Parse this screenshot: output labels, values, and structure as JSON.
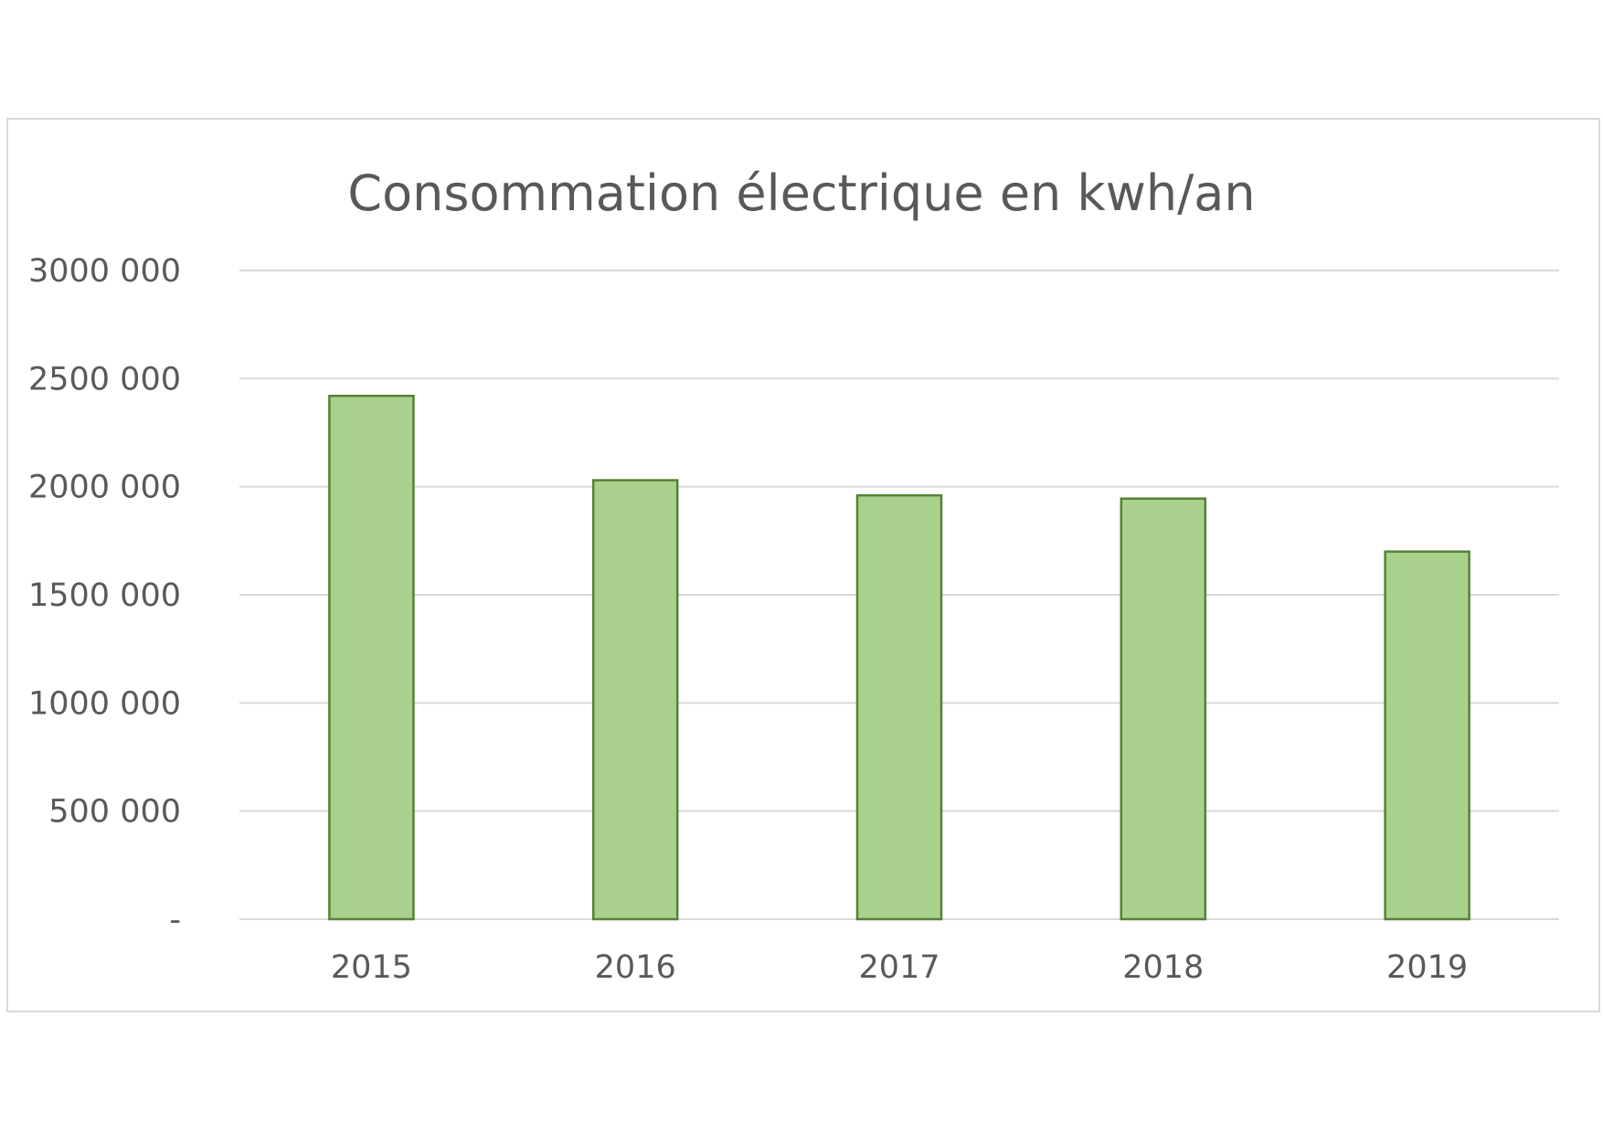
{
  "chart_data": {
    "type": "bar",
    "title": "Consommation électrique en kwh/an",
    "xlabel": "",
    "ylabel": "",
    "categories": [
      "2015",
      "2016",
      "2017",
      "2018",
      "2019"
    ],
    "values": [
      2420000,
      2030000,
      1960000,
      1945000,
      1700000
    ],
    "ylim": [
      0,
      3000000
    ],
    "yticks": [
      0,
      500000,
      1000000,
      1500000,
      2000000,
      2500000,
      3000000
    ],
    "ytick_labels": [
      "-",
      "500 000",
      "1000 000",
      "1500 000",
      "2000 000",
      "2500 000",
      "3000 000"
    ],
    "grid": true,
    "legend": "none",
    "colors": {
      "bar_fill": "#a9d18e",
      "bar_stroke": "#548235",
      "grid": "#d9d9d9",
      "text": "#595959"
    }
  }
}
